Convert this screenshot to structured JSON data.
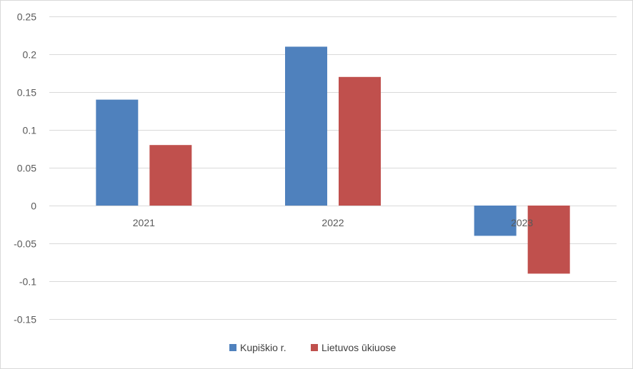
{
  "chart_data": {
    "type": "bar",
    "title": "",
    "xlabel": "",
    "ylabel": "",
    "categories": [
      "2021",
      "2022",
      "2023"
    ],
    "series": [
      {
        "name": "Kupiškio r.",
        "color": "#4f81bd",
        "values": [
          0.14,
          0.21,
          -0.04
        ]
      },
      {
        "name": "Lietuvos ūkiuose",
        "color": "#c0504d",
        "values": [
          0.08,
          0.17,
          -0.09
        ]
      }
    ],
    "ylim": [
      -0.15,
      0.25
    ],
    "yticks": [
      "0.25",
      "0.2",
      "0.15",
      "0.1",
      "0.05",
      "0",
      "-0.05",
      "-0.1",
      "-0.15"
    ],
    "ytick_values": [
      0.25,
      0.2,
      0.15,
      0.1,
      0.05,
      0,
      -0.05,
      -0.1,
      -0.15
    ],
    "grid": true,
    "legend": "bottom"
  }
}
